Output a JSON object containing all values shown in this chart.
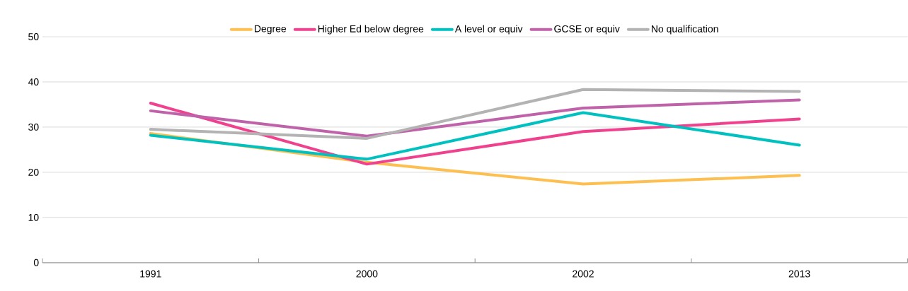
{
  "chart_data": {
    "type": "line",
    "categories": [
      "1991",
      "2000",
      "2002",
      "2013"
    ],
    "series": [
      {
        "name": "Degree",
        "color": "#fdbf4f",
        "values": [
          28.6,
          22.2,
          17.4,
          19.3
        ]
      },
      {
        "name": "Higher Ed below degree",
        "color": "#f0418e",
        "values": [
          35.3,
          21.8,
          29.0,
          31.8
        ]
      },
      {
        "name": "A level or equiv",
        "color": "#00c0c0",
        "values": [
          28.2,
          22.9,
          33.2,
          26.0
        ]
      },
      {
        "name": "GCSE or equiv",
        "color": "#c062a9",
        "values": [
          33.6,
          28.0,
          34.2,
          36.0
        ]
      },
      {
        "name": "No qualification",
        "color": "#b3b3b3",
        "values": [
          29.5,
          27.5,
          38.3,
          37.9
        ]
      }
    ],
    "ylim": [
      0,
      50
    ],
    "yticks": [
      0,
      10,
      20,
      30,
      40,
      50
    ],
    "grid": "y",
    "legend": "top",
    "marker": "none",
    "line_style": "solid"
  }
}
